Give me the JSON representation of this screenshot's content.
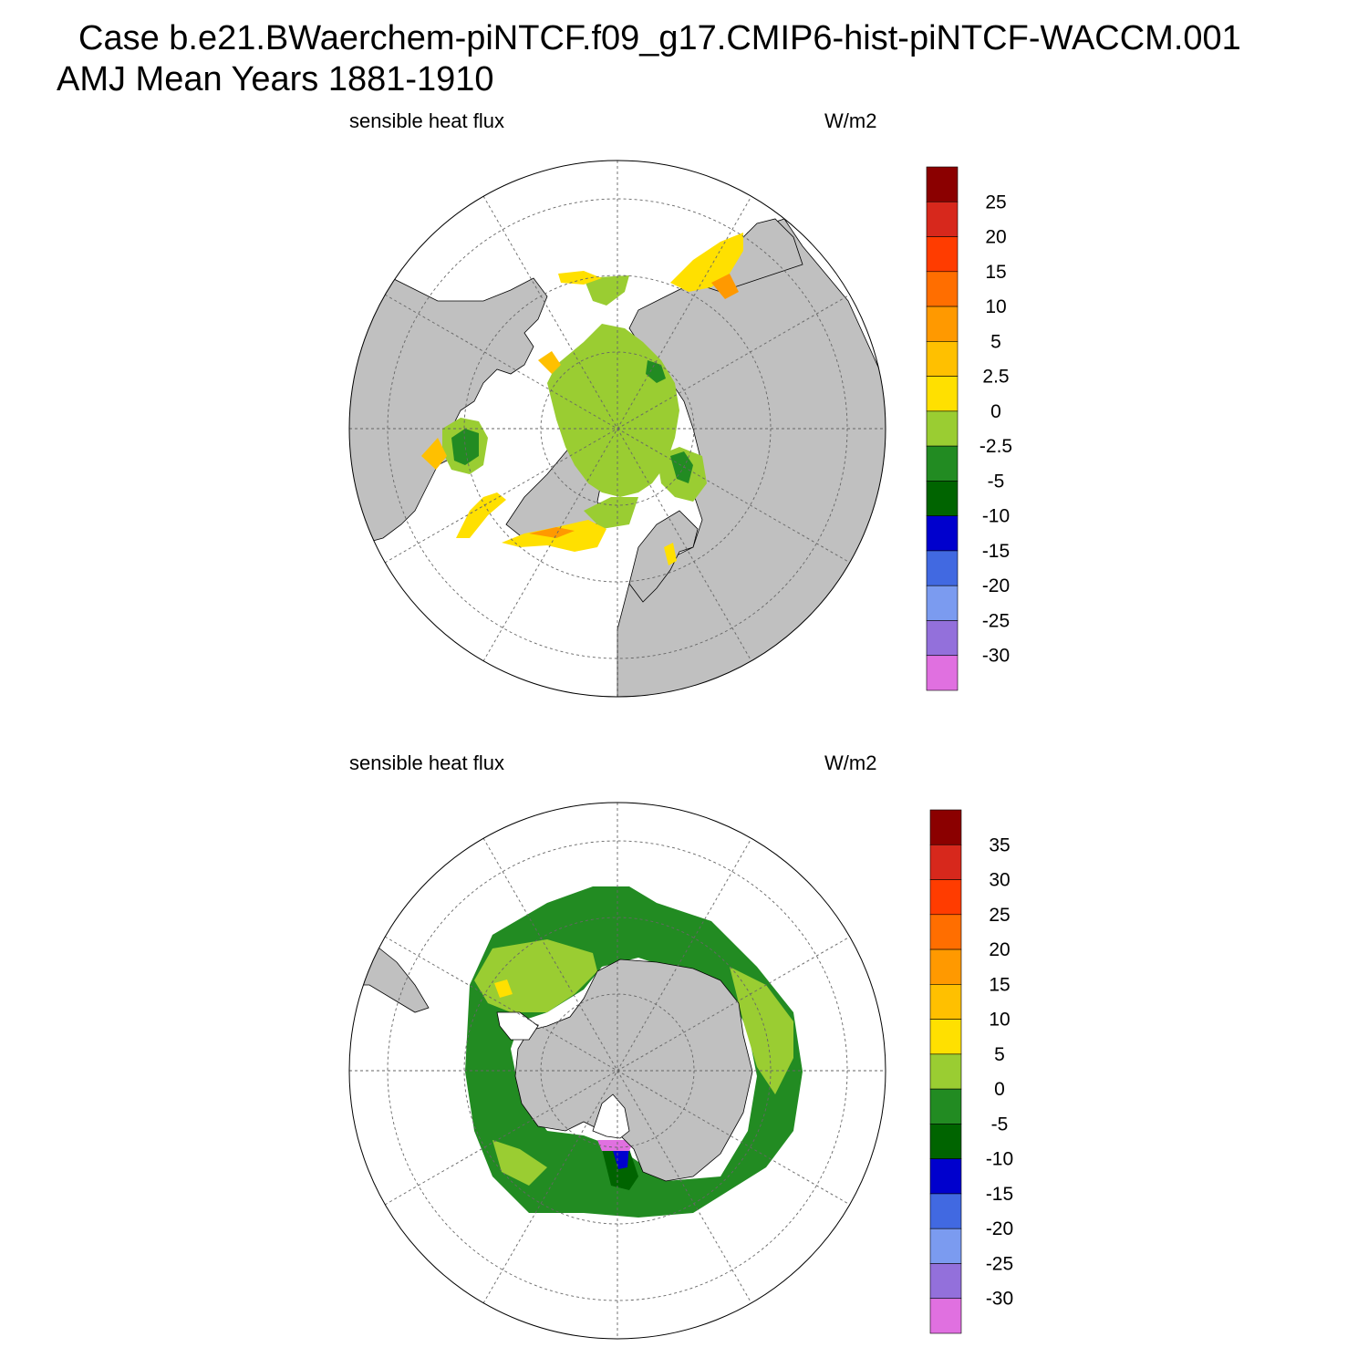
{
  "title": {
    "line1": "Case b.e21.BWaerchem-piNTCF.f09_g17.CMIP6-hist-piNTCF-WACCM.001",
    "line2": "AMJ Mean   Years 1881-1910"
  },
  "panels": [
    {
      "hemisphere": "north",
      "left_label": "sensible heat flux",
      "right_label": "W/m2",
      "colorbar": {
        "labels": [
          "25",
          "20",
          "15",
          "10",
          "5",
          "2.5",
          "0",
          "-2.5",
          "-5",
          "-10",
          "-15",
          "-20",
          "-25",
          "-30"
        ],
        "colors": [
          "#8b0000",
          "#d7281c",
          "#ff3c00",
          "#ff6e00",
          "#ff9900",
          "#ffc000",
          "#ffe000",
          "#9acd32",
          "#228b22",
          "#006400",
          "#0000cd",
          "#4169e1",
          "#7b9bf0",
          "#9370db",
          "#e070e0"
        ]
      }
    },
    {
      "hemisphere": "south",
      "left_label": "sensible heat flux",
      "right_label": "W/m2",
      "colorbar": {
        "labels": [
          "35",
          "30",
          "25",
          "20",
          "15",
          "10",
          "5",
          "0",
          "-5",
          "-10",
          "-15",
          "-20",
          "-25",
          "-30"
        ],
        "colors": [
          "#8b0000",
          "#d7281c",
          "#ff3c00",
          "#ff6e00",
          "#ff9900",
          "#ffc000",
          "#ffe000",
          "#9acd32",
          "#228b22",
          "#006400",
          "#0000cd",
          "#4169e1",
          "#7b9bf0",
          "#9370db",
          "#e070e0"
        ]
      }
    }
  ],
  "style": {
    "land_color": "#c0c0c0",
    "ocean_missing_color": "#ffffff"
  }
}
